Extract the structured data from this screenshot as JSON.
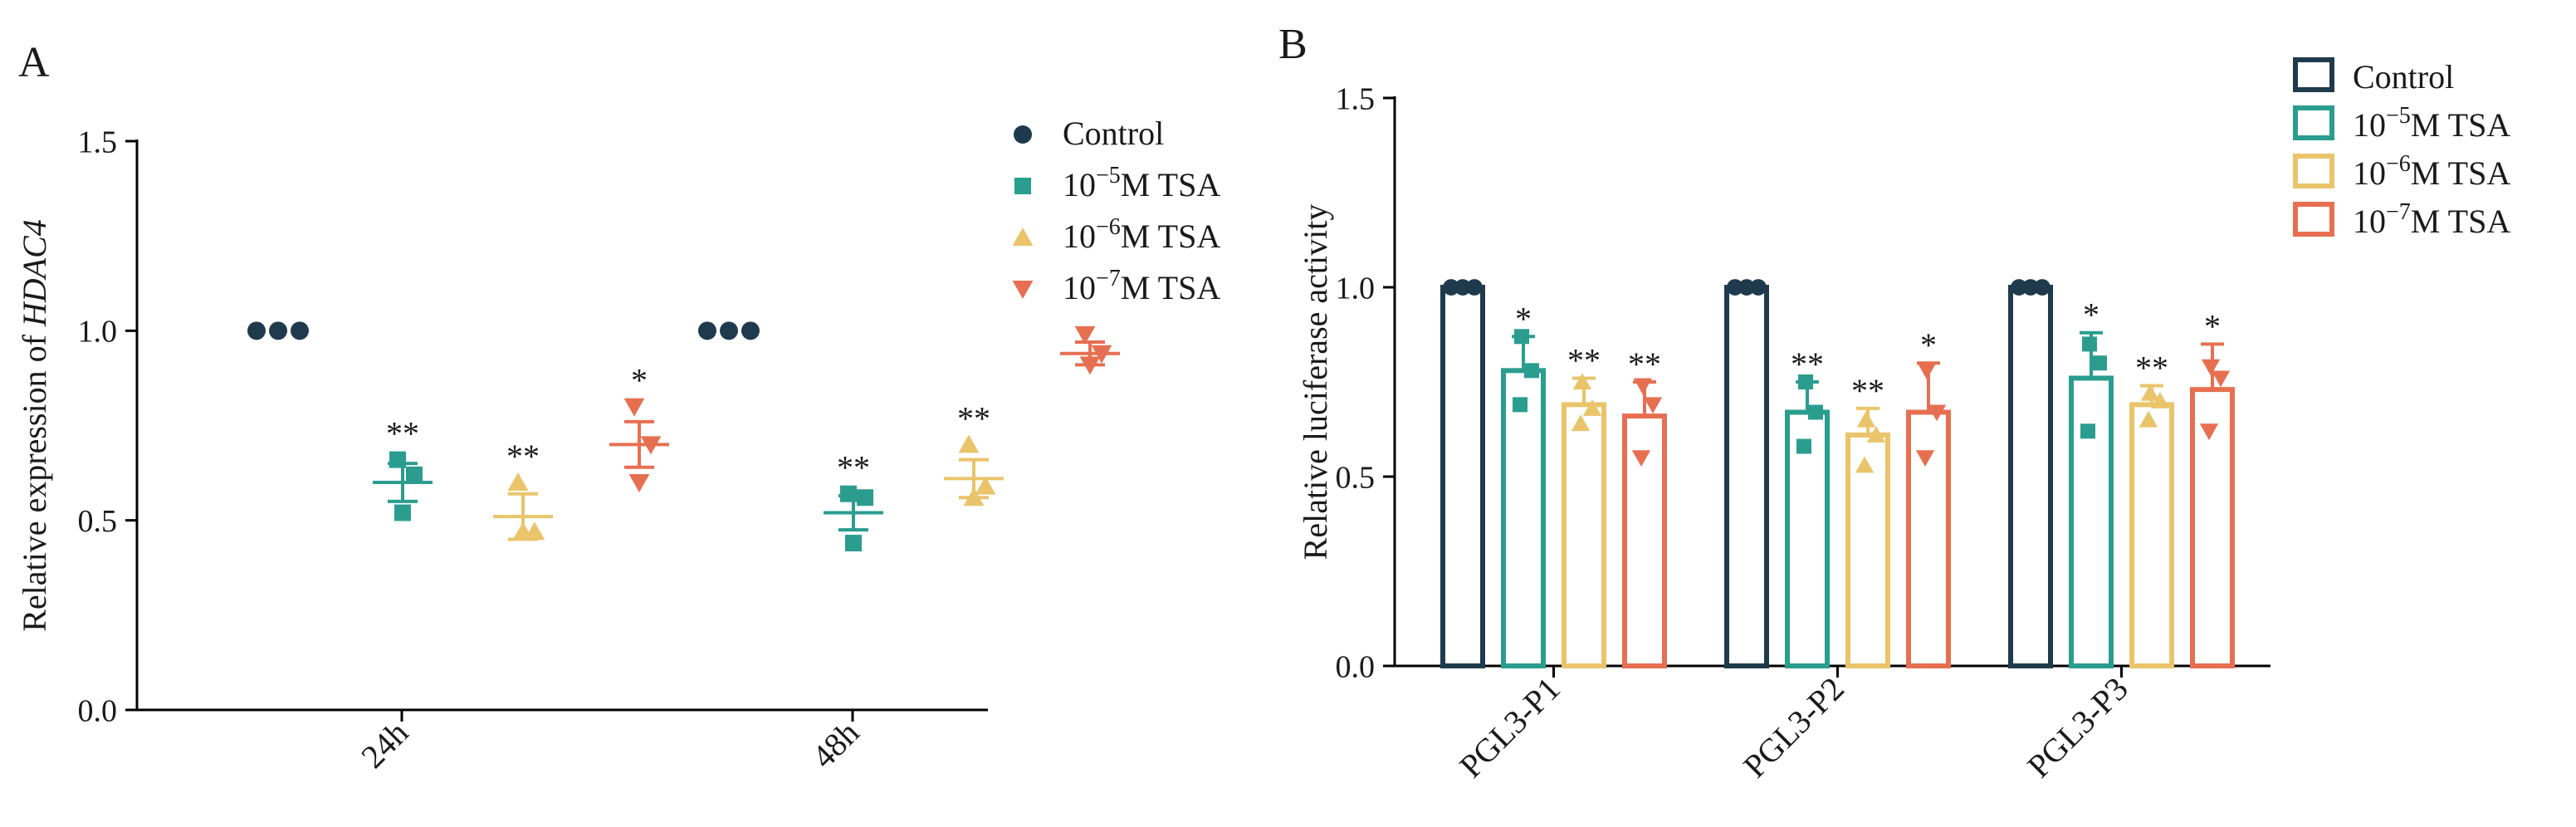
{
  "colors": {
    "control": "#1f3a4d",
    "tsa5": "#2a9d8f",
    "tsa6": "#e9c46a",
    "tsa7": "#e76f51",
    "axis": "#000000"
  },
  "legend_entries": [
    {
      "key": "control",
      "base": "Control",
      "sup": "",
      "suffix": ""
    },
    {
      "key": "tsa5",
      "base": "10",
      "sup": "−5",
      "suffix": "M TSA"
    },
    {
      "key": "tsa6",
      "base": "10",
      "sup": "−6",
      "suffix": "M TSA"
    },
    {
      "key": "tsa7",
      "base": "10",
      "sup": "−7",
      "suffix": "M TSA"
    }
  ],
  "chart_data": [
    {
      "panel_label": "A",
      "type": "scatter",
      "ylabel": {
        "prefix": "Relative expression of ",
        "italic": "HDAC4"
      },
      "ylim": [
        0,
        1.5
      ],
      "yticks": [
        "0.0",
        "0.5",
        "1.0",
        "1.5"
      ],
      "categories": [
        "24h",
        "48h"
      ],
      "legend_markers": {
        "control": "circle",
        "tsa5": "square",
        "tsa6": "triangle-up",
        "tsa7": "triangle-down"
      },
      "series": [
        {
          "key": "control",
          "name": "Control",
          "marker": "circle",
          "groups": [
            {
              "points": [
                1.0,
                1.0,
                1.0
              ],
              "mean": 1.0,
              "sem": 0.0,
              "sig": ""
            },
            {
              "points": [
                1.0,
                1.0,
                1.0
              ],
              "mean": 1.0,
              "sem": 0.0,
              "sig": ""
            }
          ]
        },
        {
          "key": "tsa5",
          "name": "10−5M TSA",
          "marker": "square",
          "groups": [
            {
              "points": [
                0.66,
                0.62,
                0.52
              ],
              "mean": 0.6,
              "sem": 0.05,
              "sig": "**"
            },
            {
              "points": [
                0.57,
                0.56,
                0.44
              ],
              "mean": 0.52,
              "sem": 0.045,
              "sig": "**"
            }
          ]
        },
        {
          "key": "tsa6",
          "name": "10−6M TSA",
          "marker": "triangle-up",
          "groups": [
            {
              "points": [
                0.6,
                0.47,
                0.47
              ],
              "mean": 0.51,
              "sem": 0.06,
              "sig": "**"
            },
            {
              "points": [
                0.7,
                0.59,
                0.56
              ],
              "mean": 0.61,
              "sem": 0.05,
              "sig": "**"
            }
          ]
        },
        {
          "key": "tsa7",
          "name": "10−7M TSA",
          "marker": "triangle-down",
          "groups": [
            {
              "points": [
                0.8,
                0.7,
                0.6
              ],
              "mean": 0.7,
              "sem": 0.06,
              "sig": "*"
            },
            {
              "points": [
                0.99,
                0.94,
                0.91
              ],
              "mean": 0.94,
              "sem": 0.03,
              "sig": ""
            }
          ]
        }
      ]
    },
    {
      "panel_label": "B",
      "type": "bar",
      "ylabel": "Relative luciferase activity",
      "ylim": [
        0,
        1.5
      ],
      "yticks": [
        "0.0",
        "0.5",
        "1.0",
        "1.5"
      ],
      "categories": [
        "PGL3-P1",
        "PGL3-P2",
        "PGL3-P3"
      ],
      "series": [
        {
          "key": "control",
          "name": "Control",
          "marker": "circle",
          "values": [
            1.0,
            1.0,
            1.0
          ],
          "err": [
            0.0,
            0.0,
            0.0
          ],
          "sig": [
            "",
            "",
            ""
          ],
          "points": [
            [
              1.0,
              1.0,
              1.0
            ],
            [
              1.0,
              1.0,
              1.0
            ],
            [
              1.0,
              1.0,
              1.0
            ]
          ]
        },
        {
          "key": "tsa5",
          "name": "10−5M TSA",
          "marker": "square",
          "values": [
            0.78,
            0.67,
            0.76
          ],
          "err": [
            0.09,
            0.08,
            0.12
          ],
          "sig": [
            "*",
            "**",
            "*"
          ],
          "points": [
            [
              0.87,
              0.78,
              0.69
            ],
            [
              0.75,
              0.67,
              0.58
            ],
            [
              0.85,
              0.8,
              0.62
            ]
          ]
        },
        {
          "key": "tsa6",
          "name": "10−6M TSA",
          "marker": "triangle-up",
          "values": [
            0.69,
            0.61,
            0.69
          ],
          "err": [
            0.07,
            0.07,
            0.05
          ],
          "sig": [
            "**",
            "**",
            "**"
          ],
          "points": [
            [
              0.75,
              0.68,
              0.64
            ],
            [
              0.65,
              0.61,
              0.53
            ],
            [
              0.72,
              0.7,
              0.65
            ]
          ]
        },
        {
          "key": "tsa7",
          "name": "10−7M TSA",
          "marker": "triangle-down",
          "values": [
            0.66,
            0.67,
            0.73
          ],
          "err": [
            0.09,
            0.13,
            0.12
          ],
          "sig": [
            "**",
            "*",
            "*"
          ],
          "points": [
            [
              0.74,
              0.69,
              0.55
            ],
            [
              0.78,
              0.67,
              0.55
            ],
            [
              0.79,
              0.76,
              0.62
            ]
          ]
        }
      ]
    }
  ]
}
